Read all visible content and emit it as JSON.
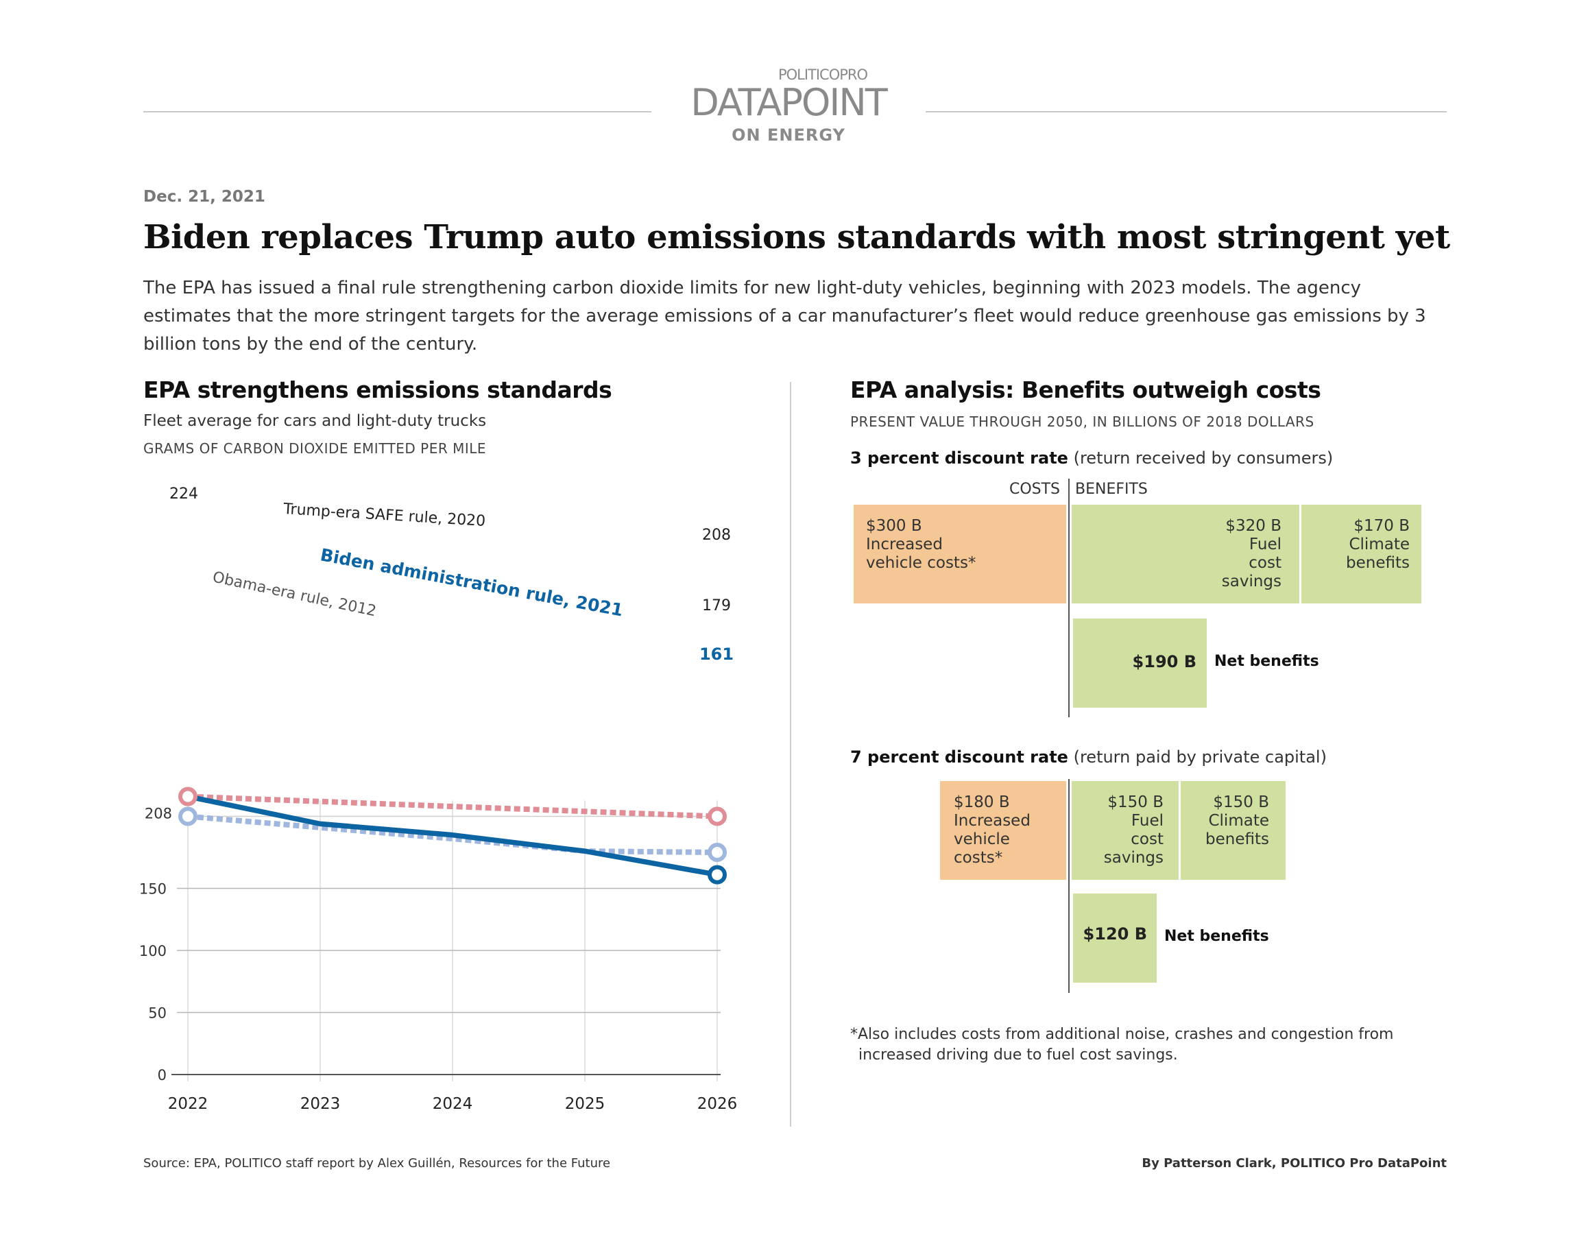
{
  "brand": {
    "top": "POLITICOPRO",
    "main": "DATAPOINT",
    "sub": "ON ENERGY"
  },
  "date": "Dec. 21, 2021",
  "headline": "Biden replaces Trump auto emissions standards with most stringent yet",
  "dek": "The EPA has issued a final rule strengthening carbon dioxide limits for new light-duty vehicles, beginning with 2023 models. The agency estimates that the more stringent targets for the average emissions of a car manufacturer’s fleet would reduce greenhouse gas emissions by 3 billion tons by the end of the century.",
  "left": {
    "title": "EPA strengthens emissions standards",
    "subtitle": "Fleet average for cars and light-duty trucks",
    "unit": "GRAMS OF CARBON DIOXIDE EMITTED PER MILE"
  },
  "right": {
    "title": "EPA analysis: Benefits outweigh costs",
    "unit": "PRESENT VALUE THROUGH 2050, IN BILLIONS OF 2018 DOLLARS",
    "costs_header": "COSTS",
    "benefits_header": "BENEFITS",
    "panel3": {
      "rate": "3 percent discount rate",
      "note": "(return received by consumers)",
      "cost": {
        "value": "$300 B",
        "label": "Increased vehicle costs*"
      },
      "fuel": {
        "value": "$320 B",
        "label": "Fuel cost savings"
      },
      "climate": {
        "value": "$170 B",
        "label": "Climate benefits"
      },
      "net": {
        "value": "$190 B",
        "label": "Net benefits"
      }
    },
    "panel7": {
      "rate": "7 percent discount rate",
      "note": "(return paid by private capital)",
      "cost": {
        "value": "$180 B",
        "label": "Increased vehicle costs*"
      },
      "fuel": {
        "value": "$150 B",
        "label": "Fuel cost savings"
      },
      "climate": {
        "value": "$150 B",
        "label": "Climate benefits"
      },
      "net": {
        "value": "$120 B",
        "label": "Net benefits"
      }
    },
    "footnote": "*Also includes costs from additional noise, crashes and congestion from increased driving due to fuel cost savings."
  },
  "source": "Source: EPA, POLITICO staff report by Alex Guillén, Resources for the Future",
  "byline": "By Patterson Clark, POLITICO Pro DataPoint",
  "chart_data": [
    {
      "type": "line",
      "title": "EPA strengthens emissions standards",
      "subtitle": "Fleet average for cars and light-duty trucks",
      "ylabel": "GRAMS OF CARBON DIOXIDE EMITTED PER MILE",
      "x": [
        2022,
        2023,
        2024,
        2025,
        2026
      ],
      "ylim": [
        0,
        224
      ],
      "yticks": [
        0,
        50,
        100,
        150
      ],
      "ytick_extra": {
        "value": 208,
        "label": "208"
      },
      "grid": true,
      "series": [
        {
          "name": "Trump-era SAFE rule, 2020",
          "color": "#e08d96",
          "dashed": true,
          "points": [
            [
              2022,
              224
            ],
            [
              2026,
              208
            ]
          ],
          "end_labels": {
            "start": "224",
            "end": "208"
          }
        },
        {
          "name": "Obama-era rule, 2012",
          "color": "#9fb6de",
          "dashed": true,
          "points": [
            [
              2022,
              208
            ],
            [
              2023,
              199
            ],
            [
              2024,
              190
            ],
            [
              2025,
              180
            ],
            [
              2026,
              179
            ]
          ],
          "end_labels": {
            "start": "208",
            "end": "179"
          }
        },
        {
          "name": "Biden administration rule, 2021",
          "color": "#0d64a3",
          "dashed": false,
          "points": [
            [
              2022,
              224
            ],
            [
              2023,
              202
            ],
            [
              2024,
              193
            ],
            [
              2025,
              180
            ],
            [
              2026,
              161
            ]
          ],
          "end_labels": {
            "end": "161"
          }
        }
      ]
    },
    {
      "type": "bar",
      "title": "3 percent discount rate",
      "unit": "billions of 2018 dollars",
      "costs": [
        {
          "name": "Increased vehicle costs*",
          "value": 300
        }
      ],
      "benefits": [
        {
          "name": "Fuel cost savings",
          "value": 320
        },
        {
          "name": "Climate benefits",
          "value": 170
        }
      ],
      "net_benefits": 190
    },
    {
      "type": "bar",
      "title": "7 percent discount rate",
      "unit": "billions of 2018 dollars",
      "costs": [
        {
          "name": "Increased vehicle costs*",
          "value": 180
        }
      ],
      "benefits": [
        {
          "name": "Fuel cost savings",
          "value": 150
        },
        {
          "name": "Climate benefits",
          "value": 150
        }
      ],
      "net_benefits": 120
    }
  ]
}
